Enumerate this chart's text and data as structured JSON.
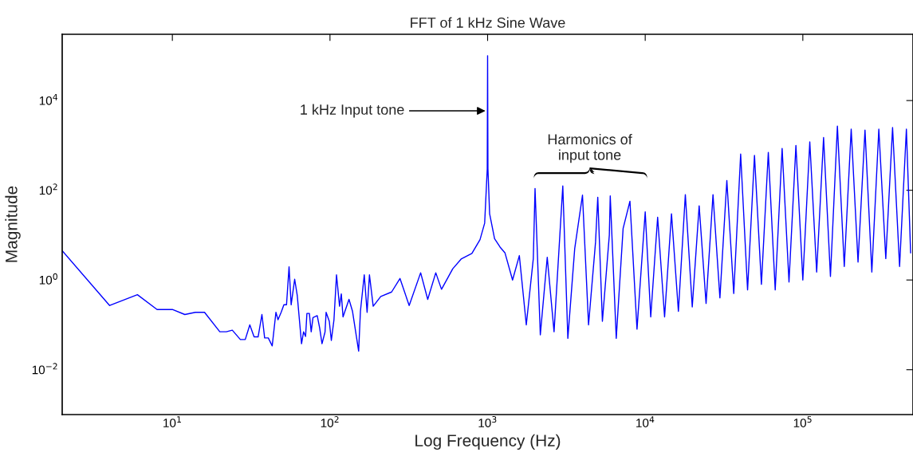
{
  "chart_data": {
    "type": "line",
    "title": "FFT of 1 kHz Sine Wave",
    "xlabel": "Log Frequency (Hz)",
    "ylabel": "Magnitude",
    "log": "xy",
    "grid": false,
    "legend": false,
    "marker": "none",
    "line_style": "solid",
    "xlim": [
      2,
      500000
    ],
    "ylim": [
      0.001,
      300000
    ],
    "xticks": [
      {
        "value": 10,
        "label": "10$^{1}$"
      },
      {
        "value": 100,
        "label": "10$^{2}$"
      },
      {
        "value": 1000,
        "label": "10$^{3}$"
      },
      {
        "value": 10000,
        "label": "10$^{4}$"
      },
      {
        "value": 100000,
        "label": "10$^{5}$"
      }
    ],
    "yticks": [
      {
        "value": 0.01,
        "label": "10$^{−2}$"
      },
      {
        "value": 1,
        "label": "10$^{0}$"
      },
      {
        "value": 100,
        "label": "10$^{2}$"
      },
      {
        "value": 10000,
        "label": "10$^{4}$"
      }
    ],
    "annotations": [
      {
        "text": "1 kHz Input tone",
        "x": 1000,
        "y": 5900
      },
      "Harmonics of\ninput tone"
    ],
    "series": [
      {
        "color": "#0000ff",
        "x": [
          2,
          4,
          6,
          8,
          10,
          12,
          14,
          16,
          20,
          22,
          24,
          27,
          29,
          31,
          33,
          35,
          37,
          38.5,
          40.6,
          43,
          45.4,
          46.8,
          49,
          51,
          53,
          55,
          56.7,
          59.7,
          62,
          66,
          68,
          70,
          71.4,
          74,
          76,
          78,
          83,
          86,
          89,
          93,
          94.5,
          99,
          102,
          106,
          110,
          115,
          118,
          121,
          132,
          139,
          152,
          156,
          165,
          172,
          178,
          188,
          210,
          246,
          278,
          318,
          376,
          417,
          469,
          510,
          601,
          679,
          795,
          895,
          958,
          995,
          1000,
          1005,
          1030,
          1107,
          1200,
          1290,
          1440,
          1590,
          1760,
          1950,
          2000,
          2160,
          2390,
          2640,
          3000,
          3230,
          3570,
          4000,
          4370,
          4840,
          5000,
          5350,
          5920,
          6000,
          6550,
          7240,
          8000,
          8870,
          10000,
          10840,
          11990,
          13270,
          14680,
          16240,
          17970,
          19880,
          21990,
          24330,
          26920,
          29780,
          32950,
          36450,
          40320,
          44610,
          49350,
          54600,
          60400,
          66800,
          73900,
          81700,
          90400,
          100000,
          110700,
          122400,
          135400,
          149700,
          165700,
          183200,
          202700,
          224000,
          248000,
          274000,
          303500,
          336000,
          371000,
          411000,
          454000,
          483000
        ],
        "values": [
          4.5,
          0.27,
          0.47,
          0.22,
          0.22,
          0.17,
          0.19,
          0.19,
          0.07,
          0.07,
          0.076,
          0.047,
          0.047,
          0.1,
          0.054,
          0.054,
          0.17,
          0.051,
          0.051,
          0.034,
          0.19,
          0.13,
          0.19,
          0.28,
          0.28,
          1.97,
          0.28,
          1.04,
          0.45,
          0.038,
          0.07,
          0.055,
          0.18,
          0.18,
          0.07,
          0.145,
          0.16,
          0.085,
          0.038,
          0.069,
          0.19,
          0.12,
          0.045,
          0.13,
          1.3,
          0.26,
          0.49,
          0.15,
          0.37,
          0.2,
          0.026,
          0.2,
          1.3,
          0.19,
          1.3,
          0.26,
          0.43,
          0.54,
          1.08,
          0.27,
          1.45,
          0.37,
          1.45,
          0.62,
          1.78,
          2.93,
          3.9,
          7.9,
          18.5,
          300,
          100000,
          300,
          30,
          8.3,
          5.4,
          4,
          1.0,
          3.5,
          0.1,
          3.0,
          110,
          0.06,
          3.2,
          0.07,
          125,
          0.05,
          5,
          78,
          0.1,
          7,
          70,
          0.12,
          10,
          75,
          0.05,
          14,
          57,
          0.08,
          33,
          0.15,
          25,
          0.15,
          30,
          0.2,
          80,
          0.25,
          45,
          0.3,
          80,
          0.4,
          165,
          0.5,
          640,
          0.6,
          600,
          0.8,
          700,
          0.6,
          860,
          0.9,
          1000,
          1.0,
          1200,
          1.5,
          1500,
          1.2,
          2700,
          2.0,
          2300,
          2.5,
          2200,
          1.5,
          2300,
          3,
          2500,
          2,
          2300,
          4
        ]
      }
    ]
  }
}
